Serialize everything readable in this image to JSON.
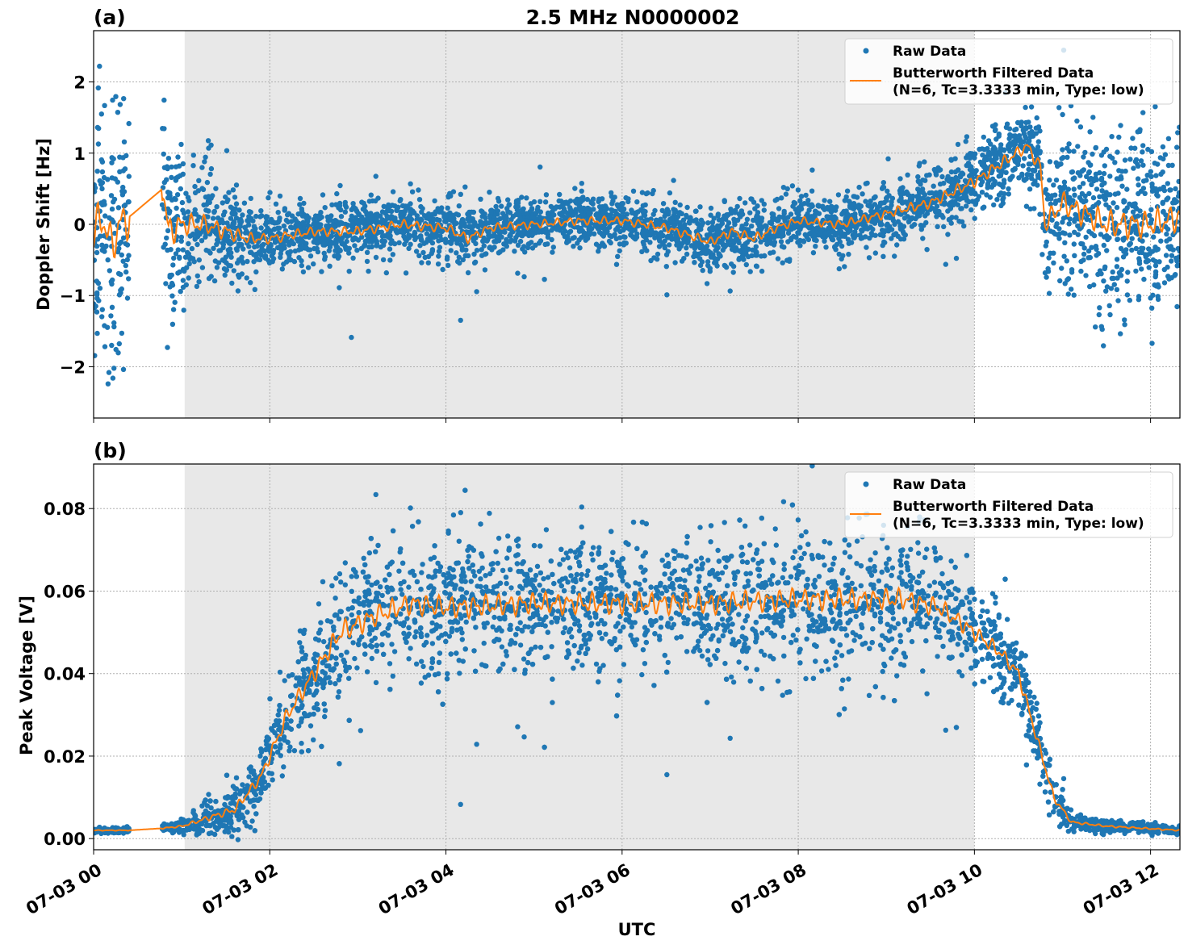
{
  "chart_data": [
    {
      "type": "scatter",
      "panel_label": "(a)",
      "title": "2.5 MHz N0000002",
      "xlabel": "",
      "ylabel": "Doppler Shift [Hz]",
      "xlim": [
        "07-03 00:00",
        "07-03 12:20"
      ],
      "ylim": [
        -2.72,
        2.72
      ],
      "yticks": [
        -2,
        -1,
        0,
        1,
        2
      ],
      "ytick_labels": [
        "−2",
        "−1",
        "0",
        "1",
        "2"
      ],
      "grid": true,
      "shaded_region": [
        "07-03 01:02",
        "07-03 10:00"
      ],
      "shade_color": "#e8e8e8",
      "legend": {
        "placement": "top-right",
        "entries": [
          "Raw Data",
          "Butterworth Filtered Data\n(N=6, Tc=3.3333 min, Type: low)"
        ],
        "line1": "Butterworth Filtered Data",
        "line2": "(N=6, Tc=3.3333 min, Type: low)"
      },
      "series": [
        {
          "name": "Raw Data",
          "style": "points",
          "color": "#1f77b4"
        },
        {
          "name": "Butterworth Filtered Data (N=6, Tc=3.3333 min, Type: low)",
          "style": "line",
          "color": "#ff7f0e"
        }
      ],
      "gaps": [
        [
          "07-03 00:24",
          "07-03 00:47"
        ]
      ],
      "x": [
        "07-03 00:00",
        "07-03 00:06",
        "07-03 00:12",
        "07-03 00:18",
        "07-03 00:24",
        "07-03 00:47",
        "07-03 00:51",
        "07-03 01:00",
        "07-03 01:15",
        "07-03 01:30",
        "07-03 01:45",
        "07-03 02:00",
        "07-03 02:30",
        "07-03 03:00",
        "07-03 03:30",
        "07-03 04:00",
        "07-03 04:15",
        "07-03 04:30",
        "07-03 05:00",
        "07-03 05:30",
        "07-03 06:00",
        "07-03 06:30",
        "07-03 07:00",
        "07-03 07:15",
        "07-03 07:30",
        "07-03 07:45",
        "07-03 08:00",
        "07-03 08:30",
        "07-03 09:00",
        "07-03 09:30",
        "07-03 10:00",
        "07-03 10:18",
        "07-03 10:36",
        "07-03 10:45",
        "07-03 10:48",
        "07-03 11:00",
        "07-03 11:30",
        "07-03 12:00",
        "07-03 12:20"
      ],
      "filtered": [
        -0.1,
        0.1,
        -0.3,
        0.0,
        0.1,
        0.5,
        -0.1,
        0.0,
        0.0,
        -0.1,
        -0.2,
        -0.2,
        -0.1,
        -0.1,
        0.0,
        -0.05,
        -0.2,
        -0.05,
        0.0,
        0.05,
        0.05,
        -0.05,
        -0.25,
        -0.1,
        -0.2,
        -0.05,
        0.05,
        0.0,
        0.15,
        0.3,
        0.6,
        0.85,
        1.1,
        0.8,
        0.0,
        0.3,
        0.0,
        0.0,
        0.1
      ],
      "raw_spread": [
        0.9,
        0.9,
        0.9,
        0.9,
        0.9,
        0.7,
        0.7,
        0.5,
        0.4,
        0.35,
        0.25,
        0.22,
        0.2,
        0.2,
        0.2,
        0.2,
        0.2,
        0.18,
        0.18,
        0.18,
        0.18,
        0.18,
        0.2,
        0.2,
        0.2,
        0.18,
        0.18,
        0.18,
        0.2,
        0.22,
        0.25,
        0.25,
        0.25,
        0.3,
        0.4,
        0.5,
        0.6,
        0.6,
        0.6
      ]
    },
    {
      "type": "scatter",
      "panel_label": "(b)",
      "xlabel": "UTC",
      "ylabel": "Peak Voltage [V]",
      "xlim": [
        "07-03 00:00",
        "07-03 12:20"
      ],
      "ylim": [
        -0.0027,
        0.0908
      ],
      "yticks": [
        0.0,
        0.02,
        0.04,
        0.06,
        0.08
      ],
      "ytick_labels": [
        "0.00",
        "0.02",
        "0.04",
        "0.06",
        "0.08"
      ],
      "xtick_labels": [
        "07-03 00",
        "07-03 02",
        "07-03 04",
        "07-03 06",
        "07-03 08",
        "07-03 10",
        "07-03 12"
      ],
      "grid": true,
      "shaded_region": [
        "07-03 01:02",
        "07-03 10:00"
      ],
      "shade_color": "#e8e8e8",
      "legend": {
        "placement": "top-right",
        "line1": "Butterworth Filtered Data",
        "line2": "(N=6, Tc=3.3333 min, Type: low)",
        "raw": "Raw Data"
      },
      "series": [
        {
          "name": "Raw Data",
          "style": "points",
          "color": "#1f77b4"
        },
        {
          "name": "Butterworth Filtered Data (N=6, Tc=3.3333 min, Type: low)",
          "style": "line",
          "color": "#ff7f0e"
        }
      ],
      "gaps": [
        [
          "07-03 00:24",
          "07-03 00:47"
        ]
      ],
      "x": [
        "07-03 00:00",
        "07-03 00:24",
        "07-03 00:47",
        "07-03 01:00",
        "07-03 01:18",
        "07-03 01:36",
        "07-03 01:54",
        "07-03 02:12",
        "07-03 02:30",
        "07-03 02:48",
        "07-03 03:12",
        "07-03 03:36",
        "07-03 04:00",
        "07-03 05:00",
        "07-03 06:00",
        "07-03 07:00",
        "07-03 08:00",
        "07-03 08:42",
        "07-03 09:12",
        "07-03 09:36",
        "07-03 10:00",
        "07-03 10:18",
        "07-03 10:30",
        "07-03 10:42",
        "07-03 10:54",
        "07-03 11:06",
        "07-03 11:30",
        "07-03 12:20"
      ],
      "filtered": [
        0.002,
        0.002,
        0.0025,
        0.003,
        0.005,
        0.007,
        0.015,
        0.03,
        0.04,
        0.05,
        0.054,
        0.057,
        0.056,
        0.057,
        0.057,
        0.057,
        0.058,
        0.058,
        0.058,
        0.056,
        0.05,
        0.045,
        0.04,
        0.025,
        0.01,
        0.004,
        0.003,
        0.002
      ],
      "raw_spread": [
        0.0003,
        0.0003,
        0.0005,
        0.0008,
        0.002,
        0.003,
        0.004,
        0.006,
        0.007,
        0.008,
        0.008,
        0.008,
        0.008,
        0.008,
        0.008,
        0.008,
        0.008,
        0.008,
        0.008,
        0.007,
        0.006,
        0.005,
        0.005,
        0.004,
        0.003,
        0.001,
        0.0007,
        0.0005
      ]
    }
  ]
}
